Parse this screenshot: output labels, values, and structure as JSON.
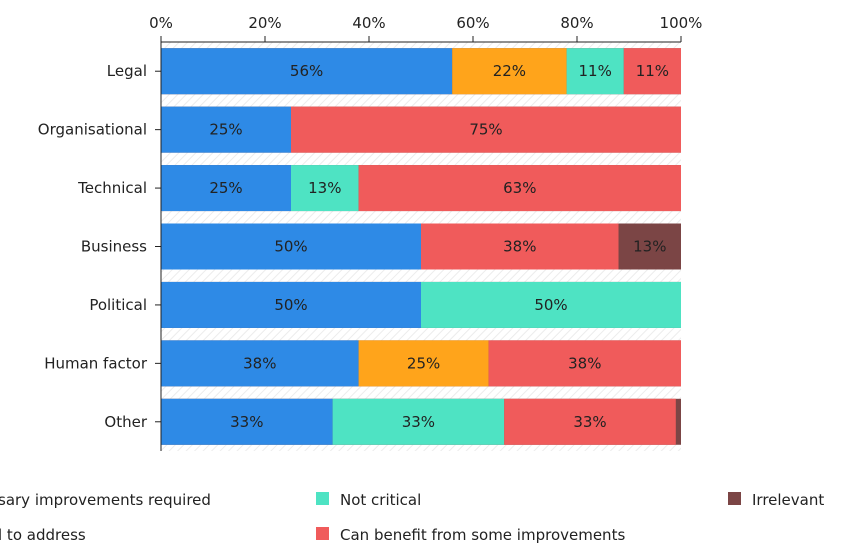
{
  "chart_data": {
    "type": "bar",
    "orientation": "horizontal",
    "stacked": true,
    "x_axis_position": "top",
    "xlim": [
      0,
      100
    ],
    "x_ticks": [
      "0%",
      "20%",
      "40%",
      "60%",
      "80%",
      "100%"
    ],
    "categories": [
      "Legal",
      "Organisational",
      "Technical",
      "Business",
      "Political",
      "Human factor",
      "Other"
    ],
    "series": [
      {
        "name": "Necessary improvements required",
        "color": "#2e8ae6",
        "values": [
          56,
          25,
          25,
          50,
          50,
          38,
          33
        ],
        "labels": [
          "56%",
          "25%",
          "25%",
          "50%",
          "50%",
          "38%",
          "33%"
        ]
      },
      {
        "name": "Critical to address",
        "color": "#ffa41b",
        "values": [
          22,
          0,
          0,
          0,
          0,
          25,
          0
        ],
        "labels": [
          "22%",
          "",
          "",
          "",
          "",
          "25%",
          ""
        ]
      },
      {
        "name": "Not critical",
        "color": "#4ee3c3",
        "values": [
          11,
          0,
          13,
          0,
          50,
          0,
          33
        ],
        "labels": [
          "11%",
          "",
          "13%",
          "",
          "50%",
          "",
          "33%"
        ]
      },
      {
        "name": "Can benefit from some improvements",
        "color": "#f05b5b",
        "values": [
          11,
          75,
          63,
          38,
          0,
          38,
          33
        ],
        "labels": [
          "11%",
          "75%",
          "63%",
          "38%",
          "",
          "38%",
          "33%"
        ]
      },
      {
        "name": "Irrelevant",
        "color": "#7b4545",
        "values": [
          0,
          0,
          0,
          13,
          0,
          0,
          0
        ],
        "labels": [
          "",
          "",
          "",
          "13%",
          "",
          "",
          ""
        ]
      }
    ],
    "legend": {
      "position": "bottom",
      "visible_texts": [
        "sary improvements required",
        "l to address",
        "Not critical",
        "Can benefit from some improvements",
        "Irrelevant"
      ]
    },
    "grid": false
  }
}
